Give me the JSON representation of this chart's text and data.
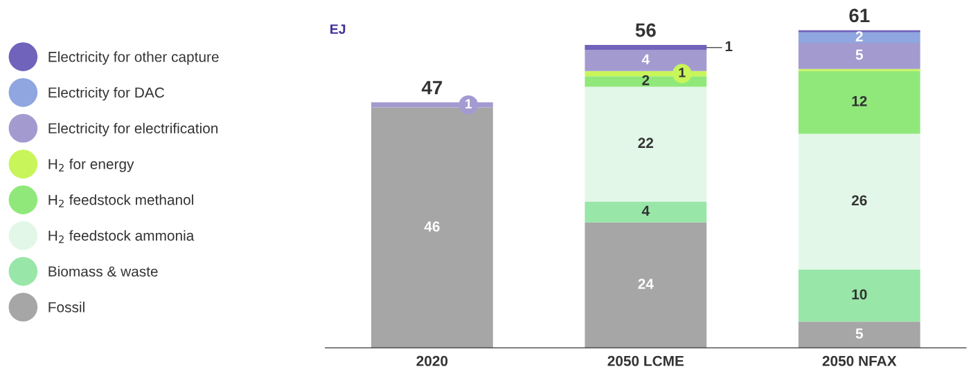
{
  "chart_data": {
    "type": "bar",
    "stacked": true,
    "ylabel": "EJ",
    "legend": "left",
    "categories": [
      "2020",
      "2050 LCME",
      "2050 NFAX"
    ],
    "series": [
      {
        "name": "Fossil",
        "color": "#a6a6a6",
        "values": [
          46,
          24,
          5
        ],
        "value_labels": [
          "46",
          "24",
          "5"
        ]
      },
      {
        "name": "Biomass & waste",
        "color": "#98e6a8",
        "values": [
          0,
          4,
          10
        ],
        "value_labels": [
          null,
          "4",
          "10"
        ]
      },
      {
        "name": "H$_{2}$ feedstock ammonia",
        "color": "#e3f7e8",
        "values": [
          0,
          22,
          26
        ],
        "value_labels": [
          null,
          "22",
          "26"
        ]
      },
      {
        "name": "H$_{2}$ feedstock methanol",
        "color": "#90e87a",
        "values": [
          0,
          2,
          12
        ],
        "value_labels": [
          null,
          "2",
          "12"
        ]
      },
      {
        "name": "H$_{2}$ for energy",
        "color": "#c8f55a",
        "values": [
          0,
          1,
          0.4
        ],
        "value_labels": [
          null,
          "1",
          null
        ]
      },
      {
        "name": "Electricity for electrification",
        "color": "#a39bd0",
        "values": [
          1,
          4,
          5
        ],
        "value_labels": [
          "1",
          "4",
          "5"
        ]
      },
      {
        "name": "Electricity for DAC",
        "color": "#8fa6e0",
        "values": [
          0,
          0,
          2
        ],
        "value_labels": [
          null,
          null,
          "2"
        ]
      },
      {
        "name": "Electricity for other capture",
        "color": "#6f63bb",
        "values": [
          0,
          1,
          0.4
        ],
        "value_labels": [
          null,
          "1",
          null
        ]
      }
    ],
    "totals": [
      "47",
      "56",
      "61"
    ]
  }
}
